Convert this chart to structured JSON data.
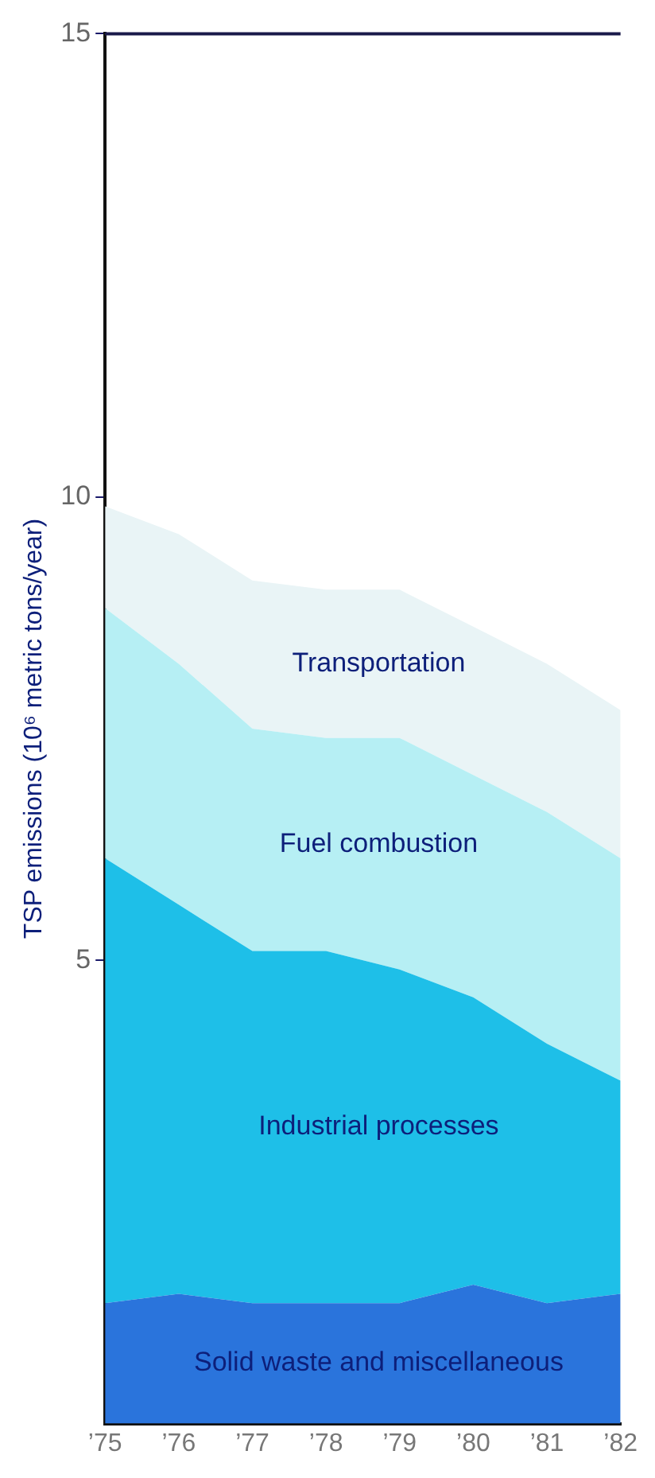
{
  "chart_data": {
    "type": "area",
    "stacked": true,
    "ylabel": "TSP emissions (10⁶ metric tons/year)",
    "categories": [
      "’75",
      "’76",
      "’77",
      "’78",
      "’79",
      "’80",
      "’81",
      "’82"
    ],
    "ylim": [
      0,
      15
    ],
    "yticks": [
      5,
      10,
      15
    ],
    "grid": false,
    "legend": false,
    "series": [
      {
        "name": "Solid waste and miscellaneous",
        "color": "#2a74dc",
        "values": [
          1.3,
          1.4,
          1.3,
          1.3,
          1.3,
          1.5,
          1.3,
          1.4
        ]
      },
      {
        "name": "Industrial processes",
        "color": "#1ebfe8",
        "values": [
          4.8,
          4.2,
          3.8,
          3.8,
          3.6,
          3.1,
          2.8,
          2.3
        ]
      },
      {
        "name": "Fuel combustion",
        "color": "#b6eff4",
        "values": [
          2.7,
          2.6,
          2.4,
          2.3,
          2.5,
          2.4,
          2.5,
          2.4
        ]
      },
      {
        "name": "Transportation",
        "color": "#e9f4f6",
        "values": [
          1.1,
          1.4,
          1.6,
          1.6,
          1.6,
          1.6,
          1.6,
          1.6
        ]
      }
    ]
  }
}
